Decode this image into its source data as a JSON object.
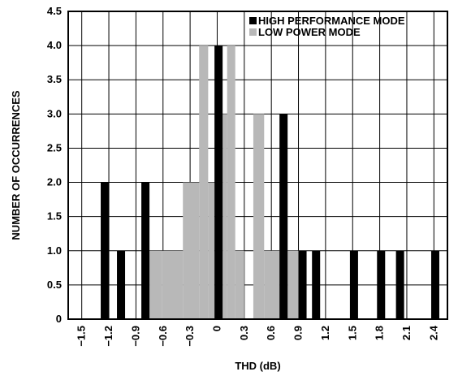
{
  "chart_data": {
    "type": "bar",
    "title": "",
    "xlabel": "THD (dB)",
    "ylabel": "NUMBER OF OCCURRENCES",
    "xlim": [
      -1.65,
      2.55
    ],
    "ylim": [
      0,
      4.5
    ],
    "grid": true,
    "legend_position": "top-right",
    "x_ticks": [
      "-1.5",
      "-1.2",
      "-0.9",
      "-0.6",
      "-0.3",
      "0",
      "0.3",
      "0.6",
      "0.9",
      "1.2",
      "1.5",
      "1.8",
      "2.1",
      "2.4"
    ],
    "x_tick_values": [
      -1.5,
      -1.2,
      -0.9,
      -0.6,
      -0.3,
      0,
      0.3,
      0.6,
      0.9,
      1.2,
      1.5,
      1.8,
      2.1,
      2.4
    ],
    "y_ticks": [
      "0",
      "0.5",
      "1.0",
      "1.5",
      "2.0",
      "2.5",
      "3.0",
      "3.5",
      "4.0",
      "4.5"
    ],
    "y_tick_values": [
      0,
      0.5,
      1.0,
      1.5,
      2.0,
      2.5,
      3.0,
      3.5,
      4.0,
      4.5
    ],
    "series": [
      {
        "name": "HIGH PERFORMANCE MODE",
        "color": "#000000",
        "bars": [
          {
            "x0": -1.29,
            "x1": -1.2,
            "value": 2
          },
          {
            "x0": -1.11,
            "x1": -1.02,
            "value": 1
          },
          {
            "x0": -0.84,
            "x1": -0.75,
            "value": 2
          },
          {
            "x0": -0.03,
            "x1": 0.06,
            "value": 4
          },
          {
            "x0": 0.69,
            "x1": 0.78,
            "value": 3
          },
          {
            "x0": 0.9,
            "x1": 0.99,
            "value": 1
          },
          {
            "x0": 1.05,
            "x1": 1.14,
            "value": 1
          },
          {
            "x0": 1.47,
            "x1": 1.56,
            "value": 1
          },
          {
            "x0": 1.77,
            "x1": 1.86,
            "value": 1
          },
          {
            "x0": 1.98,
            "x1": 2.07,
            "value": 1
          },
          {
            "x0": 2.37,
            "x1": 2.46,
            "value": 1
          }
        ]
      },
      {
        "name": "LOW POWER MODE",
        "color": "#b8b8b8",
        "bars": [
          {
            "x0": -0.75,
            "x1": -0.61,
            "value": 1
          },
          {
            "x0": -0.61,
            "x1": -0.38,
            "value": 1
          },
          {
            "x0": -0.38,
            "x1": -0.2,
            "value": 2
          },
          {
            "x0": -0.2,
            "x1": -0.1,
            "value": 4
          },
          {
            "x0": -0.1,
            "x1": -0.03,
            "value": 2
          },
          {
            "x0": 0.06,
            "x1": 0.11,
            "value": 3
          },
          {
            "x0": 0.11,
            "x1": 0.2,
            "value": 4
          },
          {
            "x0": 0.2,
            "x1": 0.3,
            "value": 1
          },
          {
            "x0": 0.4,
            "x1": 0.52,
            "value": 3
          },
          {
            "x0": 0.52,
            "x1": 0.69,
            "value": 1
          },
          {
            "x0": 0.69,
            "x1": 0.78,
            "value": 2
          },
          {
            "x0": 0.78,
            "x1": 0.9,
            "value": 1
          }
        ]
      }
    ],
    "legend": [
      {
        "label": "HIGH PERFORMANCE MODE",
        "color": "#000000"
      },
      {
        "label": "LOW POWER MODE",
        "color": "#b8b8b8"
      }
    ]
  }
}
